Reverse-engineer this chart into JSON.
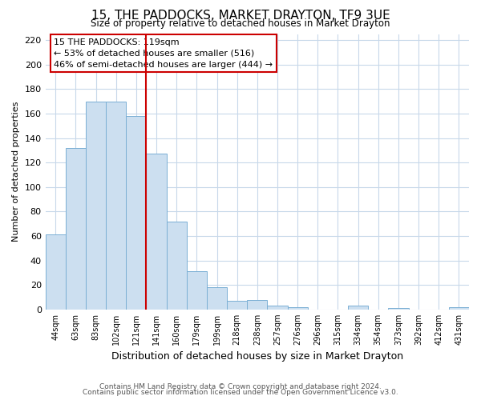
{
  "title": "15, THE PADDOCKS, MARKET DRAYTON, TF9 3UE",
  "subtitle": "Size of property relative to detached houses in Market Drayton",
  "xlabel": "Distribution of detached houses by size in Market Drayton",
  "ylabel": "Number of detached properties",
  "bar_labels": [
    "44sqm",
    "63sqm",
    "83sqm",
    "102sqm",
    "121sqm",
    "141sqm",
    "160sqm",
    "179sqm",
    "199sqm",
    "218sqm",
    "238sqm",
    "257sqm",
    "276sqm",
    "296sqm",
    "315sqm",
    "334sqm",
    "354sqm",
    "373sqm",
    "392sqm",
    "412sqm",
    "431sqm"
  ],
  "bar_values": [
    61,
    132,
    170,
    170,
    158,
    127,
    72,
    31,
    18,
    7,
    8,
    3,
    2,
    0,
    0,
    3,
    0,
    1,
    0,
    0,
    2
  ],
  "bar_color": "#ccdff0",
  "bar_edge_color": "#7aafd4",
  "highlight_index": 4,
  "highlight_line_color": "#cc0000",
  "ylim": [
    0,
    225
  ],
  "yticks": [
    0,
    20,
    40,
    60,
    80,
    100,
    120,
    140,
    160,
    180,
    200,
    220
  ],
  "annotation_title": "15 THE PADDOCKS: 119sqm",
  "annotation_line1": "← 53% of detached houses are smaller (516)",
  "annotation_line2": "46% of semi-detached houses are larger (444) →",
  "annotation_box_color": "#ffffff",
  "annotation_box_edge": "#cc0000",
  "footer_line1": "Contains HM Land Registry data © Crown copyright and database right 2024.",
  "footer_line2": "Contains public sector information licensed under the Open Government Licence v3.0.",
  "background_color": "#ffffff",
  "grid_color": "#c8d8ea"
}
